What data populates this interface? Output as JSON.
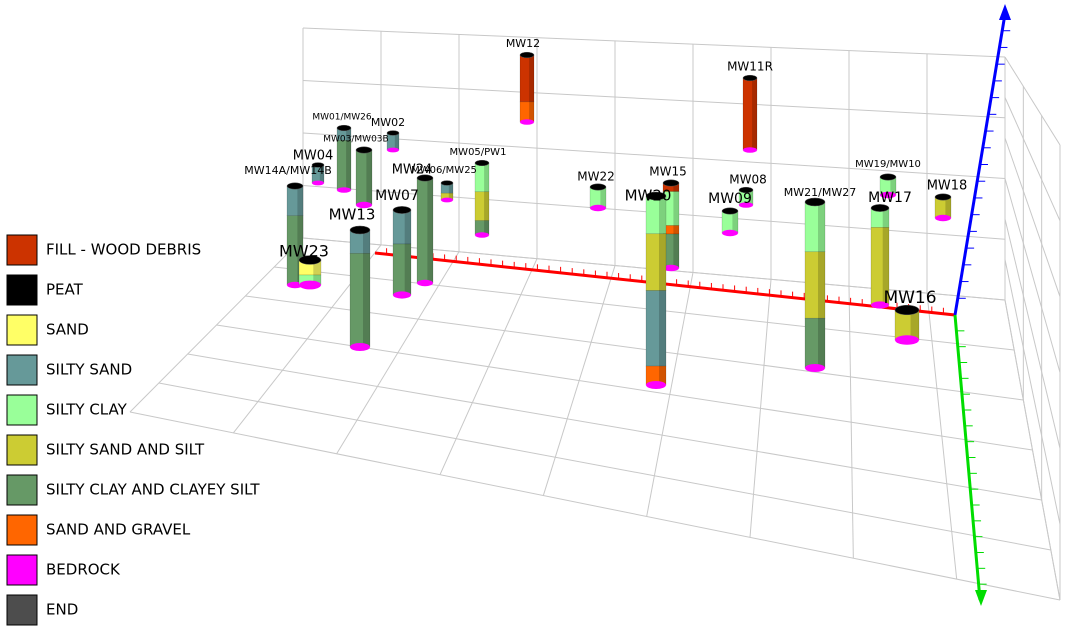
{
  "legend": [
    {
      "label": "FILL - WOOD DEBRIS",
      "color": "#cc3300"
    },
    {
      "label": "PEAT",
      "color": "#000000"
    },
    {
      "label": "SAND",
      "color": "#ffff66"
    },
    {
      "label": "SILTY SAND",
      "color": "#669999"
    },
    {
      "label": "SILTY CLAY",
      "color": "#99ff99"
    },
    {
      "label": "SILTY SAND AND SILT",
      "color": "#cccc33"
    },
    {
      "label": "SILTY CLAY AND CLAYEY SILT",
      "color": "#669966"
    },
    {
      "label": "SAND AND GRAVEL",
      "color": "#ff6600"
    },
    {
      "label": "BEDROCK",
      "color": "#ff00ff"
    },
    {
      "label": "END",
      "color": "#4d4d4d"
    }
  ],
  "wells": [
    {
      "label": "MW12"
    },
    {
      "label": "MW11R"
    },
    {
      "label": "MW01/MW26"
    },
    {
      "label": "MW02"
    },
    {
      "label": "MW03/MW03B"
    },
    {
      "label": "MW04"
    },
    {
      "label": "MW14A/MW14B"
    },
    {
      "label": "MW05/PW1"
    },
    {
      "label": "MW06/MW25"
    },
    {
      "label": "MW24"
    },
    {
      "label": "MW07"
    },
    {
      "label": "MW13"
    },
    {
      "label": "MW23"
    },
    {
      "label": "MW22"
    },
    {
      "label": "MW15"
    },
    {
      "label": "MW20"
    },
    {
      "label": "MW08"
    },
    {
      "label": "MW09"
    },
    {
      "label": "MW21/MW27"
    },
    {
      "label": "MW19/MW10"
    },
    {
      "label": "MW17"
    },
    {
      "label": "MW18"
    },
    {
      "label": "MW16"
    }
  ]
}
